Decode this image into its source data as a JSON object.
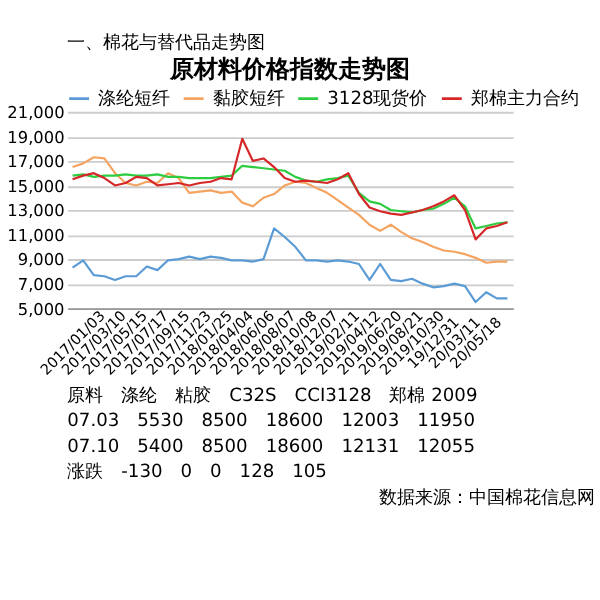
{
  "chart_data": {
    "type": "line",
    "title": "原材料价格指数走势图",
    "categories": [
      "2017/01/03",
      null,
      "2017/03/10",
      null,
      "2017/05/15",
      null,
      "2017/07/17",
      null,
      "2017/09/15",
      null,
      "2017/11/23",
      null,
      "2018/01/25",
      null,
      "2018/04/04",
      null,
      "2018/06/06",
      null,
      "2018/08/07",
      null,
      "2018/10/08",
      null,
      "2018/12/07",
      null,
      "2019/02/11",
      null,
      "2019/04/12",
      null,
      "2019/06/20",
      null,
      "2019/08/21",
      null,
      "2019/10/30",
      null,
      "19/12/31",
      null,
      "20/03/11",
      null,
      "20/05/18",
      null,
      null,
      null
    ],
    "series": [
      {
        "name": "涤纶短纤",
        "color": "#5b9bd5",
        "values": [
          8300,
          8900,
          7700,
          7600,
          7300,
          7600,
          7600,
          8400,
          8100,
          8900,
          9000,
          9200,
          9000,
          9200,
          9100,
          8900,
          8900,
          8800,
          9000,
          11500,
          10800,
          10000,
          8900,
          8900,
          8800,
          8900,
          8800,
          8600,
          7300,
          8600,
          7300,
          7200,
          7400,
          7000,
          6700,
          6800,
          7000,
          6800,
          5500,
          6300,
          5800,
          5800
        ]
      },
      {
        "name": "黏胶短纤",
        "color": "#f4a460",
        "values": [
          16500,
          16800,
          17300,
          17200,
          16000,
          15200,
          15000,
          15300,
          15200,
          16000,
          15600,
          14400,
          14500,
          14600,
          14400,
          14500,
          13600,
          13300,
          14000,
          14300,
          15000,
          15300,
          15200,
          14800,
          14400,
          13800,
          13200,
          12600,
          11800,
          11300,
          11800,
          11200,
          10700,
          10400,
          10000,
          9700,
          9600,
          9400,
          9100,
          8700,
          8800,
          8800
        ]
      },
      {
        "name": "3128现货价",
        "color": "#2ecc40",
        "values": [
          15800,
          15900,
          15700,
          15800,
          15800,
          15900,
          15800,
          15800,
          15900,
          15700,
          15700,
          15600,
          15600,
          15600,
          15700,
          15800,
          16600,
          16500,
          16400,
          16300,
          16200,
          15700,
          15400,
          15300,
          15500,
          15600,
          15800,
          14400,
          13700,
          13500,
          13000,
          12900,
          12800,
          13000,
          13100,
          13500,
          14000,
          13300,
          11500,
          11700,
          11900,
          12000
        ]
      },
      {
        "name": "郑棉主力合约",
        "color": "#d62728",
        "values": [
          15500,
          15800,
          16000,
          15600,
          15000,
          15200,
          15700,
          15600,
          15000,
          15100,
          15200,
          15000,
          15200,
          15300,
          15600,
          15500,
          18800,
          17000,
          17200,
          16500,
          15600,
          15300,
          15400,
          15300,
          15200,
          15500,
          16000,
          14300,
          13200,
          12900,
          12700,
          12600,
          12800,
          13000,
          13300,
          13700,
          14200,
          13000,
          10600,
          11500,
          11700,
          12000
        ]
      }
    ],
    "ylim": [
      5000,
      21000
    ],
    "yticks": [
      {
        "value": 5000,
        "label": "5,000"
      },
      {
        "value": 7000,
        "label": "7,000"
      },
      {
        "value": 9000,
        "label": "9,000"
      },
      {
        "value": 11000,
        "label": "11,000"
      },
      {
        "value": 13000,
        "label": "13,000"
      },
      {
        "value": 15000,
        "label": "15,000"
      },
      {
        "value": 17000,
        "label": "17,000"
      },
      {
        "value": 19000,
        "label": "19,000"
      },
      {
        "value": 21000,
        "label": "21,000"
      }
    ],
    "grid": "y",
    "legend": "top",
    "marker": "none",
    "line_style": "solid",
    "annotations": [
      "一、棉花与替代品走势图",
      "数据来源：中国棉花信息网",
      "原料　涤纶　粘胶　C32S　CCI3128　郑棉 2009",
      "07.03　5530　8500　18600　12003　11950",
      "07.10　5400　8500　18600　12131　12055",
      "涨跌　-130　0　0　128　105"
    ]
  }
}
